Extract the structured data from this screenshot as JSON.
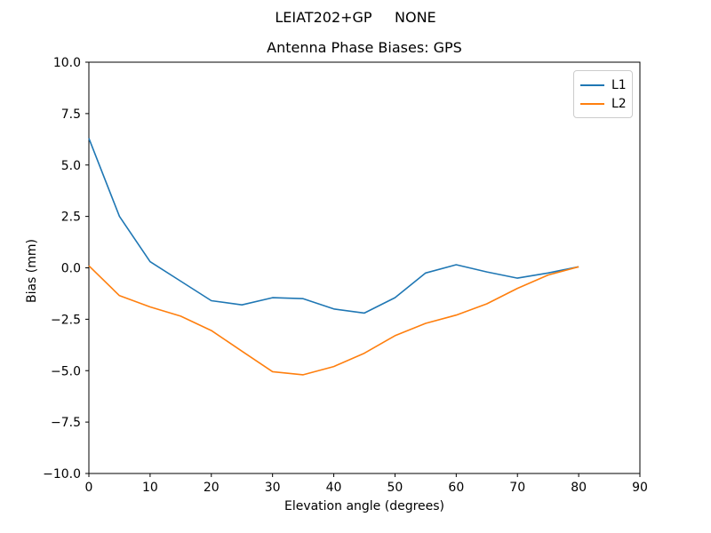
{
  "figure": {
    "suptitle": "LEIAT202+GP     NONE",
    "title": "Antenna Phase Biases: GPS",
    "xlabel": "Elevation angle (degrees)",
    "ylabel": "Bias (mm)"
  },
  "axes": {
    "xlim": [
      0,
      90
    ],
    "ylim": [
      -10,
      10
    ],
    "x_tick_values": [
      0,
      10,
      20,
      30,
      40,
      50,
      60,
      70,
      80,
      90
    ],
    "x_tick_labels": [
      "0",
      "10",
      "20",
      "30",
      "40",
      "50",
      "60",
      "70",
      "80",
      "90"
    ],
    "y_tick_values": [
      10,
      7.5,
      5,
      2.5,
      0,
      -2.5,
      -5,
      -7.5,
      -10
    ],
    "y_tick_labels": [
      "10.0",
      "7.5",
      "5.0",
      "2.5",
      "0.0",
      "−2.5",
      "−5.0",
      "−7.5",
      "−10.0"
    ],
    "spine_color": "#000000",
    "tick_color": "#000000"
  },
  "legend": {
    "position": "upper right",
    "entries": [
      {
        "label": "L1",
        "color": "#1f77b4"
      },
      {
        "label": "L2",
        "color": "#ff7f0e"
      }
    ]
  },
  "chart_data": {
    "type": "line",
    "suptitle": "LEIAT202+GP     NONE",
    "title": "Antenna Phase Biases: GPS",
    "xlabel": "Elevation angle (degrees)",
    "ylabel": "Bias (mm)",
    "xlim": [
      0,
      90
    ],
    "ylim": [
      -10,
      10
    ],
    "grid": false,
    "legend_position": "upper right",
    "x": [
      0,
      5,
      10,
      15,
      20,
      25,
      30,
      35,
      40,
      45,
      50,
      55,
      60,
      65,
      70,
      75,
      80
    ],
    "series": [
      {
        "name": "L1",
        "color": "#1f77b4",
        "values": [
          6.3,
          2.5,
          0.3,
          -0.65,
          -1.6,
          -1.8,
          -1.45,
          -1.5,
          -2.0,
          -2.2,
          -1.45,
          -0.25,
          0.15,
          -0.2,
          -0.5,
          -0.25,
          0.05
        ]
      },
      {
        "name": "L2",
        "color": "#ff7f0e",
        "values": [
          0.1,
          -1.35,
          -1.9,
          -2.35,
          -3.05,
          -4.05,
          -5.05,
          -5.2,
          -4.8,
          -4.15,
          -3.3,
          -2.7,
          -2.3,
          -1.75,
          -1.0,
          -0.35,
          0.05
        ]
      }
    ]
  }
}
